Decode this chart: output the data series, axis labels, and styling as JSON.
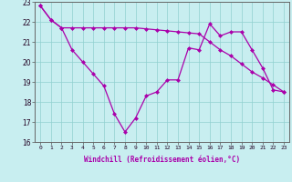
{
  "xlabel": "Windchill (Refroidissement éolien,°C)",
  "background_color": "#c8eef0",
  "line_color": "#aa00aa",
  "xlim": [
    -0.5,
    23.5
  ],
  "ylim": [
    16,
    23
  ],
  "yticks": [
    16,
    17,
    18,
    19,
    20,
    21,
    22,
    23
  ],
  "xticks": [
    0,
    1,
    2,
    3,
    4,
    5,
    6,
    7,
    8,
    9,
    10,
    11,
    12,
    13,
    14,
    15,
    16,
    17,
    18,
    19,
    20,
    21,
    22,
    23
  ],
  "series1_x": [
    0,
    1,
    2,
    3,
    4,
    5,
    6,
    7,
    8,
    9,
    10,
    11,
    12,
    13,
    14,
    15,
    16,
    17,
    18,
    19,
    20,
    21,
    22,
    23
  ],
  "series1_y": [
    22.8,
    22.1,
    21.7,
    20.6,
    20.0,
    19.4,
    18.8,
    17.4,
    16.5,
    17.2,
    18.3,
    18.5,
    19.1,
    19.1,
    20.7,
    20.6,
    21.9,
    21.3,
    21.5,
    21.5,
    20.6,
    19.7,
    18.6,
    18.5
  ],
  "series2_x": [
    0,
    1,
    2,
    3,
    4,
    5,
    6,
    7,
    8,
    9,
    10,
    11,
    12,
    13,
    14,
    15,
    16,
    17,
    18,
    19,
    20,
    21,
    22,
    23
  ],
  "series2_y": [
    22.8,
    22.1,
    21.7,
    21.7,
    21.7,
    21.7,
    21.7,
    21.7,
    21.7,
    21.7,
    21.65,
    21.6,
    21.55,
    21.5,
    21.45,
    21.4,
    21.0,
    20.6,
    20.3,
    19.9,
    19.5,
    19.2,
    18.85,
    18.5
  ]
}
